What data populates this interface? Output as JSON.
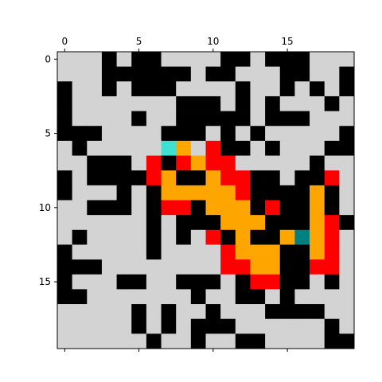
{
  "chart_data": {
    "type": "heatmap",
    "rows": 20,
    "cols": 20,
    "x_ticks": [
      0,
      5,
      10,
      15
    ],
    "y_ticks": [
      0,
      5,
      10,
      15
    ],
    "x_tick_position": "top",
    "palette": {
      "0": "#d3d3d3",
      "1": "#000000",
      "2": "#ffa500",
      "3": "#ff0000",
      "4": "#40e0d0",
      "5": "#008080"
    },
    "grid": [
      [
        0,
        0,
        0,
        1,
        0,
        1,
        1,
        0,
        0,
        0,
        0,
        1,
        1,
        0,
        1,
        1,
        1,
        0,
        0,
        0
      ],
      [
        0,
        0,
        0,
        1,
        1,
        1,
        1,
        1,
        1,
        0,
        1,
        1,
        0,
        0,
        0,
        1,
        1,
        0,
        0,
        1
      ],
      [
        1,
        0,
        0,
        1,
        0,
        1,
        1,
        1,
        0,
        0,
        0,
        0,
        1,
        0,
        0,
        1,
        0,
        1,
        0,
        1
      ],
      [
        1,
        0,
        0,
        0,
        0,
        0,
        0,
        0,
        1,
        1,
        1,
        0,
        1,
        0,
        1,
        0,
        0,
        0,
        1,
        0
      ],
      [
        1,
        0,
        0,
        0,
        0,
        1,
        0,
        0,
        1,
        1,
        1,
        1,
        1,
        0,
        1,
        1,
        1,
        0,
        0,
        0
      ],
      [
        1,
        1,
        1,
        0,
        0,
        0,
        0,
        1,
        1,
        1,
        0,
        1,
        0,
        1,
        0,
        0,
        0,
        0,
        0,
        1
      ],
      [
        0,
        1,
        0,
        0,
        0,
        0,
        0,
        4,
        2,
        0,
        3,
        1,
        1,
        0,
        1,
        0,
        0,
        0,
        1,
        1
      ],
      [
        0,
        0,
        1,
        1,
        1,
        0,
        3,
        1,
        3,
        2,
        3,
        3,
        0,
        0,
        0,
        0,
        0,
        1,
        0,
        0
      ],
      [
        1,
        0,
        1,
        1,
        1,
        1,
        3,
        2,
        1,
        1,
        2,
        3,
        3,
        1,
        1,
        0,
        1,
        1,
        3,
        0
      ],
      [
        1,
        0,
        0,
        0,
        1,
        0,
        1,
        2,
        2,
        2,
        2,
        2,
        3,
        1,
        1,
        1,
        1,
        2,
        1,
        0
      ],
      [
        0,
        0,
        1,
        1,
        1,
        0,
        1,
        3,
        3,
        1,
        2,
        2,
        2,
        1,
        3,
        1,
        1,
        2,
        1,
        0
      ],
      [
        0,
        0,
        0,
        0,
        0,
        0,
        1,
        0,
        1,
        1,
        1,
        2,
        2,
        2,
        1,
        1,
        1,
        2,
        3,
        1
      ],
      [
        0,
        1,
        0,
        0,
        0,
        0,
        1,
        0,
        1,
        0,
        3,
        1,
        2,
        1,
        1,
        2,
        5,
        2,
        3,
        0
      ],
      [
        1,
        0,
        0,
        0,
        0,
        0,
        1,
        0,
        0,
        0,
        0,
        3,
        2,
        2,
        2,
        1,
        1,
        2,
        3,
        0
      ],
      [
        1,
        1,
        1,
        0,
        0,
        0,
        0,
        0,
        0,
        0,
        0,
        3,
        3,
        2,
        2,
        1,
        1,
        3,
        3,
        0
      ],
      [
        1,
        0,
        0,
        0,
        1,
        1,
        0,
        0,
        1,
        1,
        1,
        0,
        1,
        3,
        3,
        1,
        1,
        0,
        1,
        0
      ],
      [
        1,
        1,
        0,
        0,
        0,
        0,
        0,
        0,
        0,
        1,
        0,
        0,
        1,
        1,
        0,
        1,
        0,
        0,
        0,
        0
      ],
      [
        0,
        0,
        0,
        0,
        0,
        1,
        0,
        1,
        0,
        0,
        1,
        0,
        0,
        0,
        1,
        1,
        1,
        1,
        0,
        0
      ],
      [
        0,
        0,
        0,
        0,
        0,
        1,
        0,
        1,
        0,
        1,
        1,
        1,
        0,
        0,
        0,
        0,
        0,
        0,
        1,
        0
      ],
      [
        0,
        0,
        0,
        0,
        0,
        0,
        1,
        0,
        0,
        1,
        0,
        0,
        1,
        1,
        0,
        0,
        0,
        0,
        1,
        1
      ]
    ]
  }
}
